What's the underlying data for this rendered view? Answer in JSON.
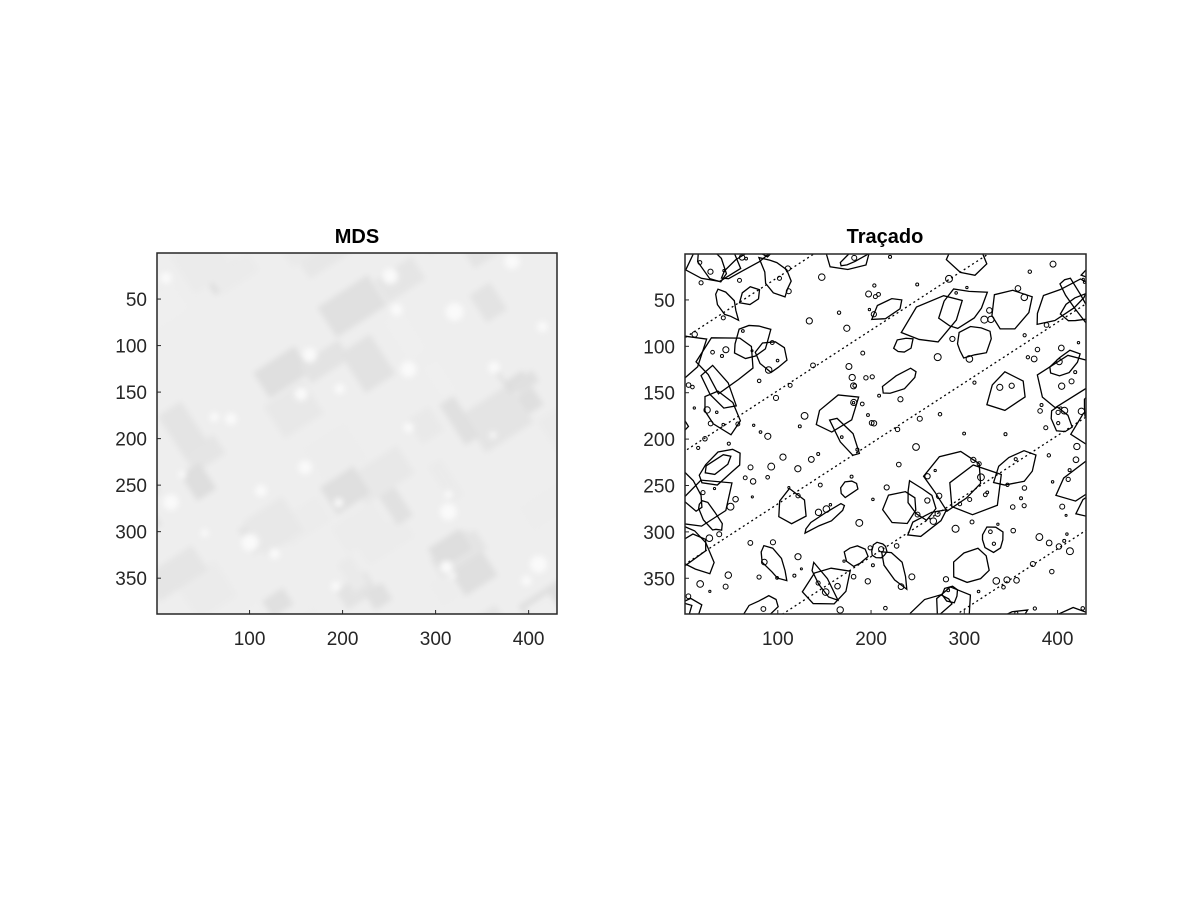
{
  "chart_data": [
    {
      "type": "heatmap",
      "title": "MDS",
      "xlabel": "",
      "ylabel": "",
      "xlim": [
        0.5,
        430.5
      ],
      "ylim": [
        0.5,
        388.5
      ],
      "y_reversed": true,
      "xticks": [
        100,
        200,
        300,
        400
      ],
      "yticks": [
        50,
        100,
        150,
        200,
        250,
        300,
        350
      ],
      "xtick_labels": [
        "100",
        "200",
        "300",
        "400"
      ],
      "ytick_labels": [
        "50",
        "100",
        "150",
        "200",
        "250",
        "300",
        "350"
      ],
      "colormap": "gray",
      "background_color": "#eeeeee",
      "content": "grayscale aerial image of residential blocks (low contrast)"
    },
    {
      "type": "heatmap",
      "title": "Traçado",
      "xlabel": "",
      "ylabel": "",
      "xlim": [
        0.5,
        430.5
      ],
      "ylim": [
        0.5,
        388.5
      ],
      "y_reversed": true,
      "xticks": [
        100,
        200,
        300,
        400
      ],
      "yticks": [
        50,
        100,
        150,
        200,
        250,
        300,
        350
      ],
      "xtick_labels": [
        "100",
        "200",
        "300",
        "400"
      ],
      "ytick_labels": [
        "50",
        "100",
        "150",
        "200",
        "250",
        "300",
        "350"
      ],
      "colormap": "binary",
      "background_color": "#ffffff",
      "content": "binary edge map (building outlines in black on white)"
    }
  ]
}
